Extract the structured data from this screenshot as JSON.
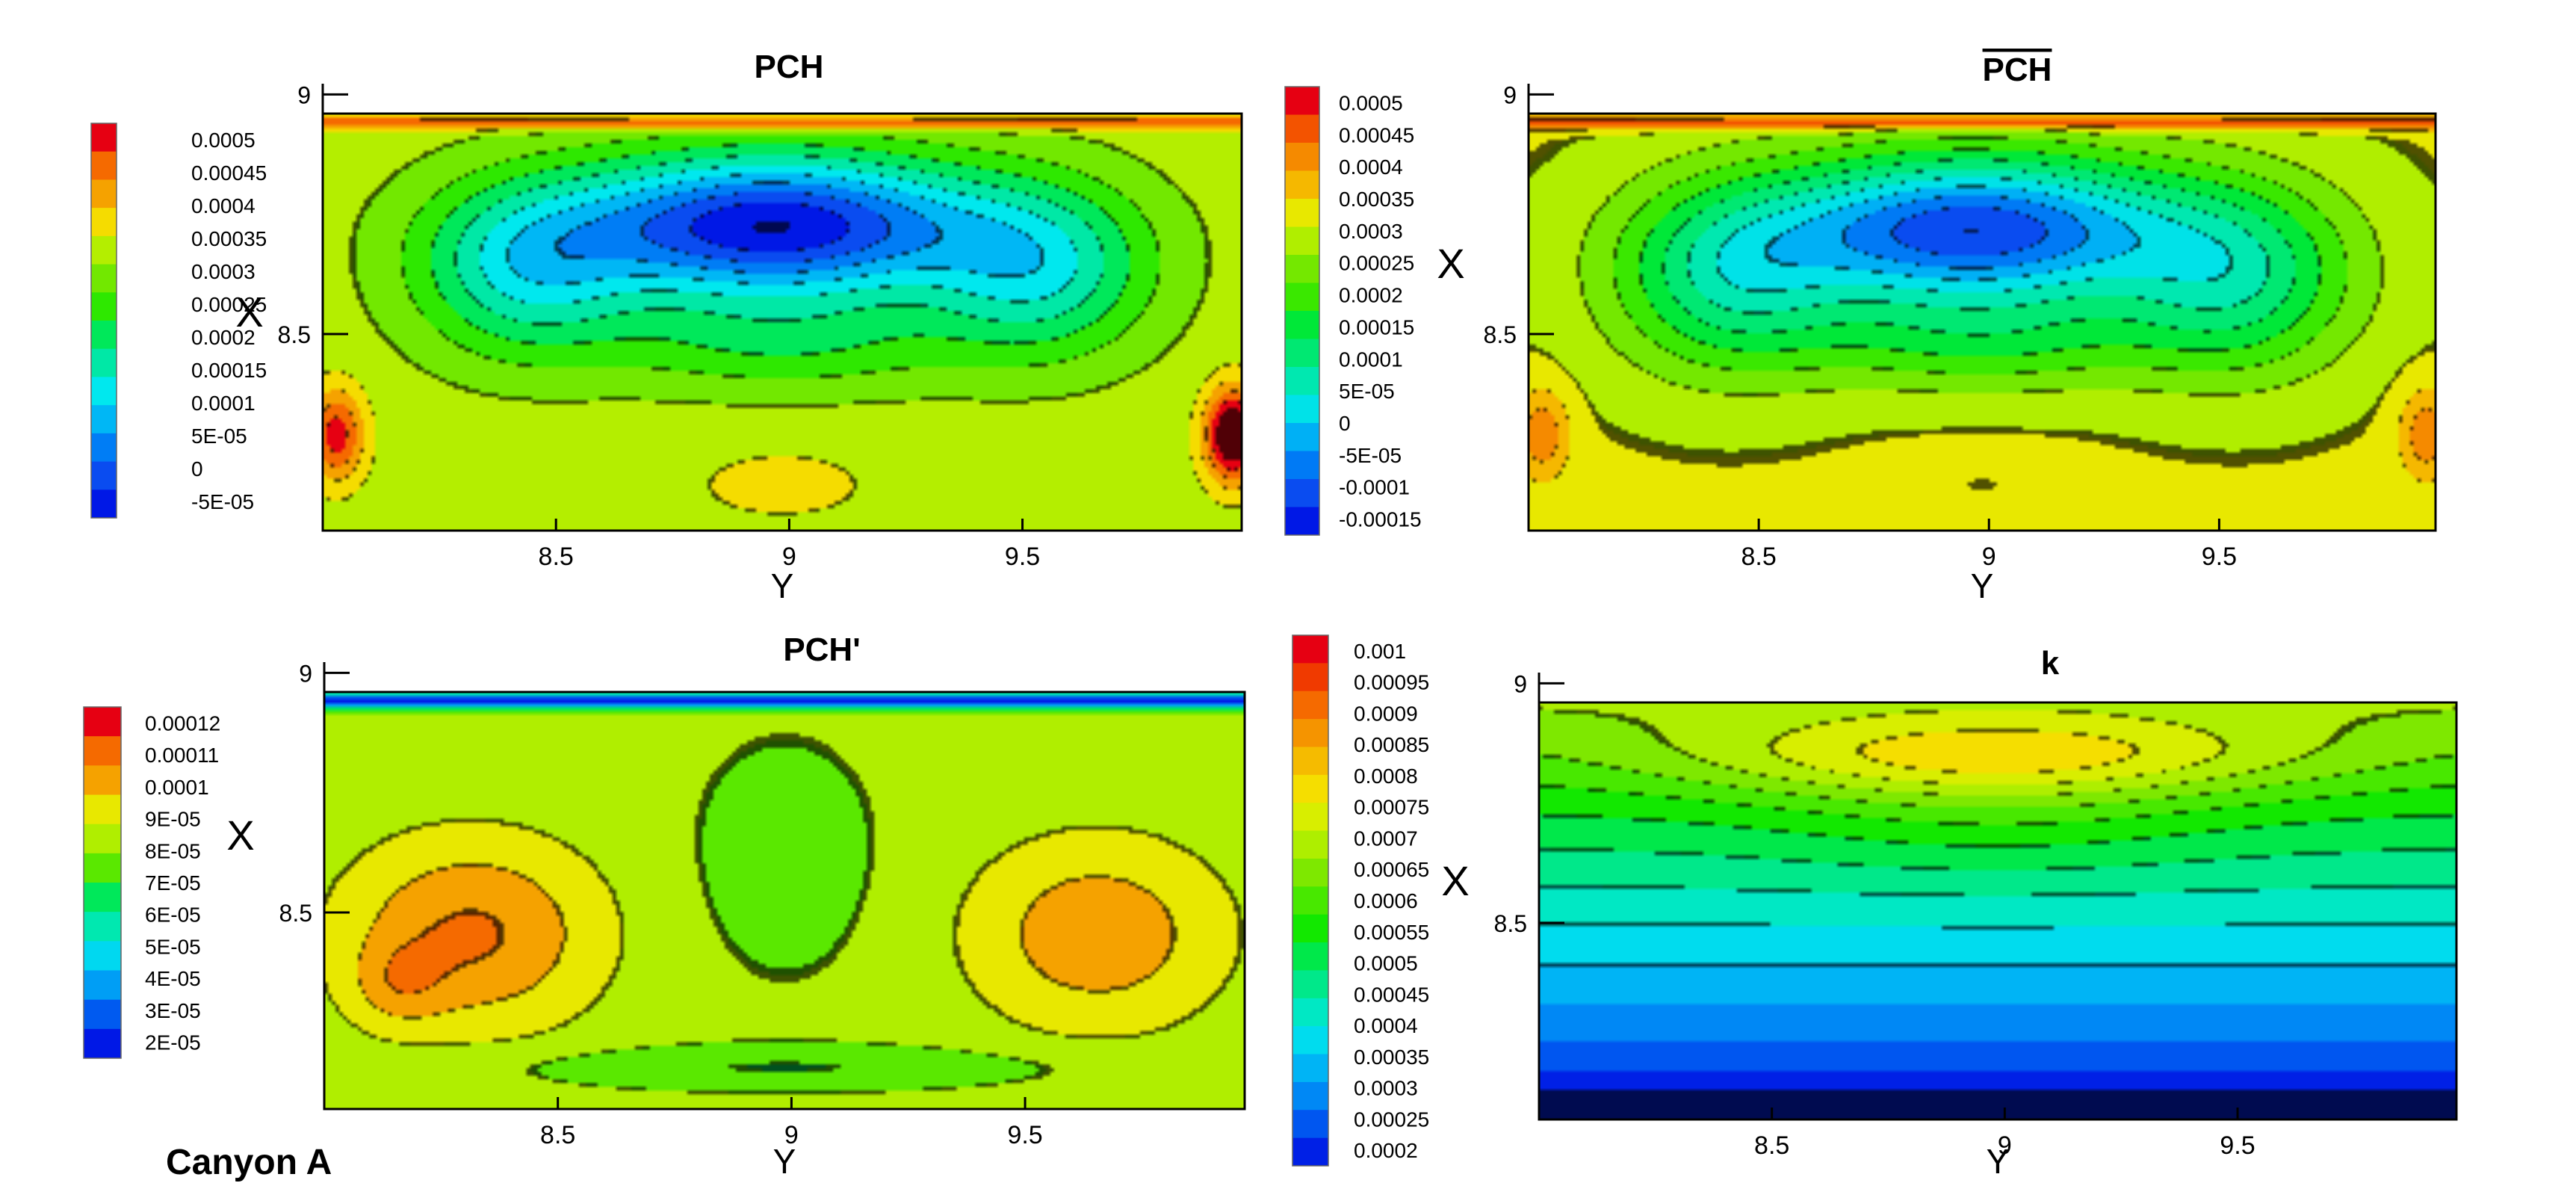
{
  "caption": "Canyon A",
  "chart_data": [
    {
      "type": "heatmap",
      "title": "PCH",
      "title_overline": false,
      "xlabel": "Y",
      "ylabel": "X",
      "x_ticks": [
        "8.5",
        "9",
        "9.5"
      ],
      "y_ticks": [
        "9",
        "8.5"
      ],
      "xlim": [
        8.0,
        9.97
      ],
      "ylim": [
        8.09,
        8.96
      ],
      "legend_placement": "left",
      "legend_levels": [
        "0.0005",
        "0.00045",
        "0.0004",
        "0.00035",
        "0.0003",
        "0.00025",
        "0.0002",
        "0.00015",
        "0.0001",
        "5E-05",
        "0",
        "-5E-05"
      ],
      "colormap": [
        "#e60012",
        "#f56a00",
        "#f5a200",
        "#f5dc00",
        "#b4ee00",
        "#72e800",
        "#2ee800",
        "#00e85a",
        "#00e8a6",
        "#00e8ee",
        "#00b7f5",
        "#007df5",
        "#0a4cf0",
        "#0018e6"
      ],
      "field": {
        "min": -0.0001,
        "max": 0.00052,
        "wall_value": 0.00045,
        "wall_y": 0.98,
        "base": 0.00032,
        "peaks": [
          {
            "x": 0.49,
            "y": 0.73,
            "sx": 0.23,
            "sy": 0.17,
            "a": -0.00042
          },
          {
            "x": 0.22,
            "y": 0.62,
            "sx": 0.12,
            "sy": 0.2,
            "a": -0.00018
          },
          {
            "x": 0.78,
            "y": 0.62,
            "sx": 0.12,
            "sy": 0.2,
            "a": -0.00018
          },
          {
            "x": 0.5,
            "y": 0.45,
            "sx": 0.2,
            "sy": 0.12,
            "a": -0.0001
          },
          {
            "x": 0.015,
            "y": 0.23,
            "sx": 0.03,
            "sy": 0.11,
            "a": 0.00018
          },
          {
            "x": 0.99,
            "y": 0.23,
            "sx": 0.03,
            "sy": 0.11,
            "a": 0.00028
          },
          {
            "x": 0.5,
            "y": 0.11,
            "sx": 0.08,
            "sy": 0.07,
            "a": 6e-05
          }
        ]
      }
    },
    {
      "type": "heatmap",
      "title": "PCH",
      "title_overline": true,
      "xlabel": "Y",
      "ylabel": "X",
      "x_ticks": [
        "8.5",
        "9",
        "9.5"
      ],
      "y_ticks": [
        "9",
        "8.5"
      ],
      "xlim": [
        8.0,
        9.97
      ],
      "ylim": [
        8.09,
        8.96
      ],
      "legend_placement": "left",
      "legend_levels": [
        "0.0005",
        "0.00045",
        "0.0004",
        "0.00035",
        "0.0003",
        "0.00025",
        "0.0002",
        "0.00015",
        "0.0001",
        "5E-05",
        "0",
        "-5E-05",
        "-0.0001",
        "-0.00015"
      ],
      "colormap": [
        "#e60012",
        "#f35300",
        "#f58a00",
        "#f5b800",
        "#e8e800",
        "#b0ee00",
        "#74e800",
        "#3ae800",
        "#00e838",
        "#00e872",
        "#00e8b0",
        "#00e2e8",
        "#00b0f5",
        "#007af5",
        "#0a4cf0",
        "#0018e6"
      ],
      "field": {
        "min": -0.0002,
        "max": 0.00052,
        "wall_value": 0.00045,
        "wall_y": 0.98,
        "base": 0.0003,
        "peaks": [
          {
            "x": 0.49,
            "y": 0.72,
            "sx": 0.23,
            "sy": 0.18,
            "a": -0.00045
          },
          {
            "x": 0.22,
            "y": 0.6,
            "sx": 0.13,
            "sy": 0.22,
            "a": -0.0002
          },
          {
            "x": 0.78,
            "y": 0.6,
            "sx": 0.13,
            "sy": 0.22,
            "a": -0.0002
          },
          {
            "x": 0.5,
            "y": 0.45,
            "sx": 0.2,
            "sy": 0.12,
            "a": -0.00012
          },
          {
            "x": 0.015,
            "y": 0.23,
            "sx": 0.03,
            "sy": 0.11,
            "a": 0.00012
          },
          {
            "x": 0.99,
            "y": 0.23,
            "sx": 0.03,
            "sy": 0.11,
            "a": 0.00012
          },
          {
            "x": 0.5,
            "y": 0.11,
            "sx": 0.08,
            "sy": 0.07,
            "a": 4e-05
          }
        ]
      }
    },
    {
      "type": "heatmap",
      "title": "PCH'",
      "title_overline": false,
      "xlabel": "Y",
      "ylabel": "X",
      "x_ticks": [
        "8.5",
        "9",
        "9.5"
      ],
      "y_ticks": [
        "9",
        "8.5"
      ],
      "xlim": [
        8.0,
        9.97
      ],
      "ylim": [
        8.09,
        8.96
      ],
      "legend_placement": "left",
      "legend_levels": [
        "0.00012",
        "0.00011",
        "0.0001",
        "9E-05",
        "8E-05",
        "7E-05",
        "6E-05",
        "5E-05",
        "4E-05",
        "3E-05",
        "2E-05"
      ],
      "colormap": [
        "#e60012",
        "#f56a00",
        "#f5a200",
        "#e8e800",
        "#b0ee00",
        "#5ae800",
        "#00e85a",
        "#00e8b0",
        "#00d8f0",
        "#009ef5",
        "#005af0",
        "#0018e6"
      ],
      "field": {
        "min": 1.5e-05,
        "max": 0.000125,
        "wall_value": 2e-05,
        "wall_y": 0.98,
        "base": 8.2e-05,
        "peaks": [
          {
            "x": 0.16,
            "y": 0.42,
            "sx": 0.14,
            "sy": 0.23,
            "a": 2.6e-05
          },
          {
            "x": 0.84,
            "y": 0.42,
            "sx": 0.14,
            "sy": 0.23,
            "a": 2.2e-05
          },
          {
            "x": 0.08,
            "y": 0.3,
            "sx": 0.05,
            "sy": 0.1,
            "a": 1.2e-05
          },
          {
            "x": 0.5,
            "y": 0.1,
            "sx": 0.32,
            "sy": 0.05,
            "a": -1.2e-05
          },
          {
            "x": 0.5,
            "y": 0.6,
            "sx": 0.1,
            "sy": 0.28,
            "a": -8e-06
          }
        ]
      }
    },
    {
      "type": "heatmap",
      "title": "k",
      "title_overline": false,
      "xlabel": "Y",
      "ylabel": "X",
      "x_ticks": [
        "8.5",
        "9",
        "9.5"
      ],
      "y_ticks": [
        "9",
        "8.5"
      ],
      "xlim": [
        8.0,
        9.97
      ],
      "ylim": [
        8.09,
        8.96
      ],
      "legend_placement": "left",
      "legend_levels": [
        "0.001",
        "0.00095",
        "0.0009",
        "0.00085",
        "0.0008",
        "0.00075",
        "0.0007",
        "0.00065",
        "0.0006",
        "0.00055",
        "0.0005",
        "0.00045",
        "0.0004",
        "0.00035",
        "0.0003",
        "0.00025",
        "0.0002"
      ],
      "colormap": [
        "#e60012",
        "#f03a00",
        "#f56a00",
        "#f59400",
        "#f5bb00",
        "#f5de00",
        "#d8ee00",
        "#aeee00",
        "#7ee800",
        "#48e800",
        "#12e800",
        "#00e84a",
        "#00e88a",
        "#00e8c4",
        "#00dcee",
        "#00b4f5",
        "#0088f5",
        "#0056f0",
        "#0020e6"
      ],
      "field": {
        "min": 0.00015,
        "max": 0.00104,
        "ramp": true,
        "base": 0.00018,
        "peaks": [
          {
            "x": 0.5,
            "y": 0.87,
            "sx": 0.33,
            "sy": 0.1,
            "a": 0.00018
          },
          {
            "x": 0.5,
            "y": 0.72,
            "sx": 0.25,
            "sy": 0.15,
            "a": 5e-05
          }
        ]
      }
    }
  ]
}
